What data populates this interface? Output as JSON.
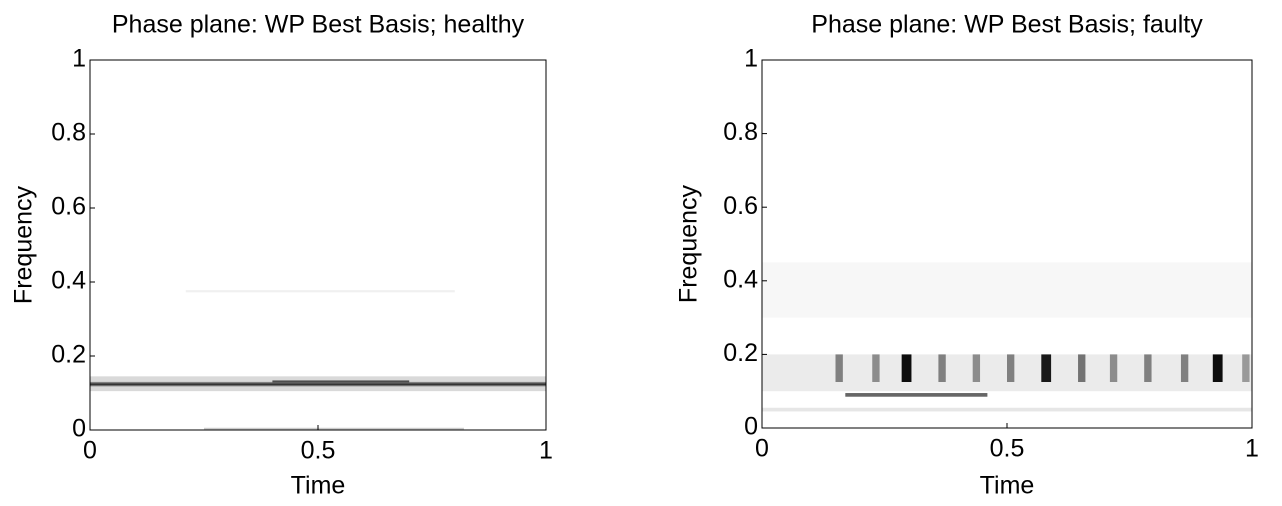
{
  "chart_data": [
    {
      "type": "heatmap",
      "title": "Phase plane:  WP Best Basis; healthy",
      "xlabel": "Time",
      "ylabel": "Frequency",
      "xlim": [
        0,
        1
      ],
      "ylim": [
        0,
        1
      ],
      "xticks": [
        0,
        0.5,
        1
      ],
      "yticks": [
        0,
        0.2,
        0.4,
        0.6,
        0.8,
        1
      ],
      "cells": [
        {
          "t": [
            0,
            1
          ],
          "f": [
            0.105,
            0.145
          ],
          "v": 0.15
        },
        {
          "t": [
            0,
            1
          ],
          "f": [
            0.118,
            0.13
          ],
          "v": 0.5
        },
        {
          "t": [
            0,
            1
          ],
          "f": [
            0.121,
            0.126
          ],
          "v": 0.8
        },
        {
          "t": [
            0.4,
            0.7
          ],
          "f": [
            0.128,
            0.134
          ],
          "v": 0.7
        },
        {
          "t": [
            0.21,
            0.8
          ],
          "f": [
            0.372,
            0.378
          ],
          "v": 0.06
        },
        {
          "t": [
            0.25,
            0.82
          ],
          "f": [
            0,
            0.006
          ],
          "v": 0.2
        }
      ]
    },
    {
      "type": "heatmap",
      "title": "Phase plane:  WP Best Basis; faulty",
      "xlabel": "Time",
      "ylabel": "Frequency",
      "xlim": [
        0,
        1
      ],
      "ylim": [
        0,
        1
      ],
      "xticks": [
        0,
        0.5,
        1
      ],
      "yticks": [
        0,
        0.2,
        0.4,
        0.6,
        0.8,
        1
      ],
      "cells": [
        {
          "t": [
            0,
            1
          ],
          "f": [
            0.1,
            0.2
          ],
          "v": 0.08
        },
        {
          "t": [
            0,
            1
          ],
          "f": [
            0.3,
            0.45
          ],
          "v": 0.03
        },
        {
          "t": [
            0,
            1
          ],
          "f": [
            0.045,
            0.055
          ],
          "v": 0.1
        },
        {
          "t": [
            0.17,
            0.46
          ],
          "f": [
            0.085,
            0.095
          ],
          "v": 0.6
        },
        {
          "t": [
            0.15,
            0.165
          ],
          "f": [
            0.125,
            0.2
          ],
          "v": 0.5
        },
        {
          "t": [
            0.225,
            0.24
          ],
          "f": [
            0.125,
            0.2
          ],
          "v": 0.45
        },
        {
          "t": [
            0.285,
            0.305
          ],
          "f": [
            0.125,
            0.2
          ],
          "v": 0.95
        },
        {
          "t": [
            0.36,
            0.375
          ],
          "f": [
            0.125,
            0.2
          ],
          "v": 0.5
        },
        {
          "t": [
            0.43,
            0.445
          ],
          "f": [
            0.125,
            0.2
          ],
          "v": 0.45
        },
        {
          "t": [
            0.5,
            0.515
          ],
          "f": [
            0.125,
            0.2
          ],
          "v": 0.5
        },
        {
          "t": [
            0.57,
            0.59
          ],
          "f": [
            0.125,
            0.2
          ],
          "v": 0.9
        },
        {
          "t": [
            0.645,
            0.66
          ],
          "f": [
            0.125,
            0.2
          ],
          "v": 0.55
        },
        {
          "t": [
            0.71,
            0.725
          ],
          "f": [
            0.125,
            0.2
          ],
          "v": 0.45
        },
        {
          "t": [
            0.78,
            0.795
          ],
          "f": [
            0.125,
            0.2
          ],
          "v": 0.5
        },
        {
          "t": [
            0.855,
            0.87
          ],
          "f": [
            0.125,
            0.2
          ],
          "v": 0.5
        },
        {
          "t": [
            0.92,
            0.94
          ],
          "f": [
            0.125,
            0.2
          ],
          "v": 0.95
        },
        {
          "t": [
            0.98,
            0.995
          ],
          "f": [
            0.125,
            0.2
          ],
          "v": 0.4
        }
      ]
    }
  ]
}
